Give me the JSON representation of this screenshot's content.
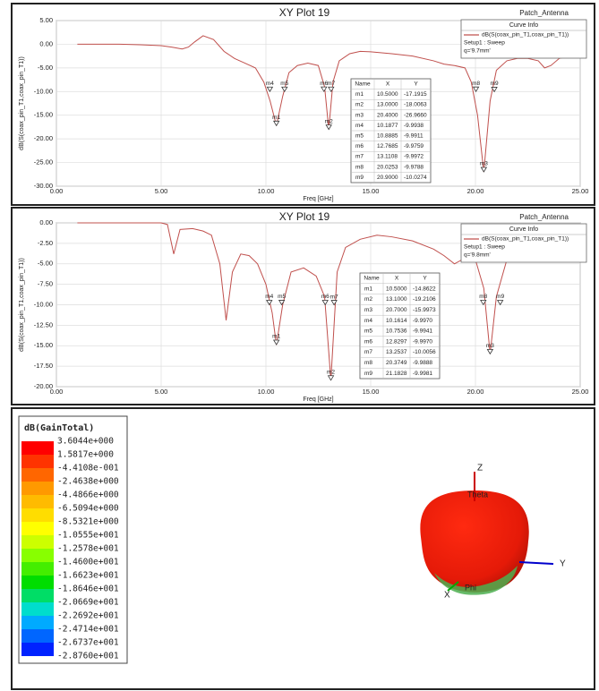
{
  "chart_data": [
    {
      "type": "line",
      "title": "XY Plot 19",
      "corner_label": "Patch_Antenna",
      "x_label": "Freq [GHz]",
      "y_label": "dB(S(coax_pin_T1,coax_pin_T1))",
      "xlim": [
        0,
        25
      ],
      "ylim": [
        -30,
        5
      ],
      "grid": true,
      "xticks": [
        {
          "value": 0,
          "label": "0.00"
        },
        {
          "value": 5,
          "label": "5.00"
        },
        {
          "value": 10,
          "label": "10.00"
        },
        {
          "value": 15,
          "label": "15.00"
        },
        {
          "value": 20,
          "label": "20.00"
        },
        {
          "value": 25,
          "label": "25.00"
        }
      ],
      "yticks": [
        {
          "value": 5,
          "label": "5.00"
        },
        {
          "value": 0,
          "label": "0.00"
        },
        {
          "value": -5,
          "label": "-5.00"
        },
        {
          "value": -10,
          "label": "-10.00"
        },
        {
          "value": -15,
          "label": "-15.00"
        },
        {
          "value": -20,
          "label": "-20.00"
        },
        {
          "value": -25,
          "label": "-25.00"
        },
        {
          "value": -30,
          "label": "-30.00"
        }
      ],
      "x": [
        1,
        2,
        3,
        4,
        5,
        5.5,
        6,
        6.3,
        6.6,
        7,
        7.5,
        8,
        8.5,
        9,
        9.5,
        9.9,
        10.2,
        10.5,
        10.8,
        11.1,
        11.5,
        12,
        12.5,
        12.8,
        13,
        13.2,
        13.5,
        14,
        14.5,
        15,
        16,
        17,
        18,
        18.5,
        19,
        19.5,
        19.8,
        20.1,
        20.4,
        20.7,
        21,
        21.5,
        22,
        22.5,
        23,
        23.3,
        23.6,
        24,
        24.5,
        25
      ],
      "series": [
        {
          "name": "dB(S(coax_pin_T1,coax_pin_T1))",
          "color": "#c0504d",
          "values": [
            0,
            0,
            0,
            -0.1,
            -0.3,
            -0.6,
            -1,
            -0.6,
            0.5,
            1.8,
            1,
            -1.5,
            -3,
            -4,
            -5,
            -8,
            -12,
            -17.2,
            -11,
            -6,
            -4.5,
            -4,
            -4.5,
            -9,
            -18,
            -8,
            -3.5,
            -2,
            -1.5,
            -1.6,
            -2,
            -2.5,
            -3.5,
            -4.2,
            -4.5,
            -5,
            -8,
            -15,
            -27,
            -12,
            -5.5,
            -3.5,
            -3,
            -3,
            -3.5,
            -5,
            -4.5,
            -3,
            -2.5,
            -2.3
          ]
        }
      ],
      "legend_title": "Curve Info",
      "legend_notes": [
        "Setup1 : Sweep",
        "q='9.7mm'"
      ],
      "marker_table_headers": [
        "Name",
        "X",
        "Y"
      ],
      "markers": [
        {
          "name": "m1",
          "x": {
            "value": 10.5,
            "label": "10.5000"
          },
          "y": {
            "value": -17.1915,
            "label": "-17.1915"
          }
        },
        {
          "name": "m2",
          "x": {
            "value": 13,
            "label": "13.0000"
          },
          "y": {
            "value": -18.0063,
            "label": "-18.0063"
          }
        },
        {
          "name": "m3",
          "x": {
            "value": 20.4,
            "label": "20.4000"
          },
          "y": {
            "value": -26.966,
            "label": "-26.9660"
          }
        },
        {
          "name": "m4",
          "x": {
            "value": 10.1877,
            "label": "10.1877"
          },
          "y": {
            "value": -9.9938,
            "label": "-9.9938"
          }
        },
        {
          "name": "m5",
          "x": {
            "value": 10.8885,
            "label": "10.8885"
          },
          "y": {
            "value": -9.9911,
            "label": "-9.9911"
          }
        },
        {
          "name": "m6",
          "x": {
            "value": 12.7685,
            "label": "12.7685"
          },
          "y": {
            "value": -9.9759,
            "label": "-9.9759"
          }
        },
        {
          "name": "m7",
          "x": {
            "value": 13.1108,
            "label": "13.1108"
          },
          "y": {
            "value": -9.9972,
            "label": "-9.9972"
          }
        },
        {
          "name": "m8",
          "x": {
            "value": 20.0253,
            "label": "20.0253"
          },
          "y": {
            "value": -9.9788,
            "label": "-9.9788"
          }
        },
        {
          "name": "m9",
          "x": {
            "value": 20.9,
            "label": "20.9000"
          },
          "y": {
            "value": -10.0274,
            "label": "-10.0274"
          }
        }
      ]
    },
    {
      "type": "line",
      "title": "XY Plot 19",
      "corner_label": "Patch_Antenna",
      "x_label": "Freq [GHz]",
      "y_label": "dB(S(coax_pin_T1,coax_pin_T1))",
      "xlim": [
        0,
        25
      ],
      "ylim": [
        -20,
        0
      ],
      "grid": true,
      "xticks": [
        {
          "value": 0,
          "label": "0.00"
        },
        {
          "value": 5,
          "label": "5.00"
        },
        {
          "value": 10,
          "label": "10.00"
        },
        {
          "value": 15,
          "label": "15.00"
        },
        {
          "value": 20,
          "label": "20.00"
        },
        {
          "value": 25,
          "label": "25.00"
        }
      ],
      "yticks": [
        {
          "value": 0,
          "label": "0.00"
        },
        {
          "value": -2.5,
          "label": "-2.50"
        },
        {
          "value": -5,
          "label": "-5.00"
        },
        {
          "value": -7.5,
          "label": "-7.50"
        },
        {
          "value": -10,
          "label": "-10.00"
        },
        {
          "value": -12.5,
          "label": "-12.50"
        },
        {
          "value": -15,
          "label": "-15.00"
        },
        {
          "value": -17.5,
          "label": "-17.50"
        },
        {
          "value": -20,
          "label": "-20.00"
        }
      ],
      "x": [
        1,
        2,
        3,
        4,
        5,
        5.3,
        5.6,
        5.9,
        6.5,
        7,
        7.4,
        7.8,
        8.1,
        8.4,
        8.8,
        9.2,
        9.6,
        10,
        10.3,
        10.5,
        10.8,
        11.2,
        11.8,
        12.4,
        12.8,
        13.1,
        13.4,
        13.8,
        14.5,
        15.3,
        16,
        17,
        18,
        18.5,
        19,
        19.5,
        20,
        20.4,
        20.7,
        21,
        21.5,
        22,
        23,
        24,
        25
      ],
      "series": [
        {
          "name": "dB(S(coax_pin_T1,coax_pin_T1))",
          "color": "#c0504d",
          "values": [
            0,
            0,
            0,
            0,
            0,
            -0.2,
            -3.8,
            -0.8,
            -0.7,
            -1,
            -1.5,
            -5,
            -11.9,
            -6,
            -3.8,
            -4,
            -5,
            -7.5,
            -11,
            -14.9,
            -10,
            -6,
            -5.5,
            -6.5,
            -9,
            -19.2,
            -6,
            -3,
            -2,
            -1.5,
            -1.7,
            -2.2,
            -3.2,
            -4,
            -5,
            -4.3,
            -4.5,
            -8,
            -16,
            -9,
            -4.5,
            -3,
            -1.5,
            -0.8,
            -0.6
          ]
        }
      ],
      "legend_title": "Curve Info",
      "legend_notes": [
        "Setup1 : Sweep",
        "q='9.8mm'"
      ],
      "marker_table_headers": [
        "Name",
        "X",
        "Y"
      ],
      "markers": [
        {
          "name": "m1",
          "x": {
            "value": 10.5,
            "label": "10.5000"
          },
          "y": {
            "value": -14.8622,
            "label": "-14.8622"
          }
        },
        {
          "name": "m2",
          "x": {
            "value": 13.1,
            "label": "13.1000"
          },
          "y": {
            "value": -19.2106,
            "label": "-19.2106"
          }
        },
        {
          "name": "m3",
          "x": {
            "value": 20.7,
            "label": "20.7000"
          },
          "y": {
            "value": -15.9973,
            "label": "-15.9973"
          }
        },
        {
          "name": "m4",
          "x": {
            "value": 10.1614,
            "label": "10.1614"
          },
          "y": {
            "value": -9.997,
            "label": "-9.9970"
          }
        },
        {
          "name": "m5",
          "x": {
            "value": 10.7536,
            "label": "10.7536"
          },
          "y": {
            "value": -9.9941,
            "label": "-9.9941"
          }
        },
        {
          "name": "m6",
          "x": {
            "value": 12.8297,
            "label": "12.8297"
          },
          "y": {
            "value": -9.997,
            "label": "-9.9970"
          }
        },
        {
          "name": "m7",
          "x": {
            "value": 13.2537,
            "label": "13.2537"
          },
          "y": {
            "value": -10.0056,
            "label": "-10.0056"
          }
        },
        {
          "name": "m8",
          "x": {
            "value": 20.3749,
            "label": "20.3749"
          },
          "y": {
            "value": -9.9888,
            "label": "-9.9888"
          }
        },
        {
          "name": "m9",
          "x": {
            "value": 21.1828,
            "label": "21.1828"
          },
          "y": {
            "value": -9.9981,
            "label": "-9.9981"
          }
        }
      ]
    }
  ],
  "gain_plot": {
    "legend": {
      "title": "dB(GainTotal)",
      "labels": [
        "3.6044e+000",
        "1.5817e+000",
        "-4.4108e-001",
        "-2.4638e+000",
        "-4.4866e+000",
        "-6.5094e+000",
        "-8.5321e+000",
        "-1.0555e+001",
        "-1.2578e+001",
        "-1.4600e+001",
        "-1.6623e+001",
        "-1.8646e+001",
        "-2.0669e+001",
        "-2.2692e+001",
        "-2.4714e+001",
        "-2.6737e+001",
        "-2.8760e+001"
      ],
      "colors": [
        "#ff0000",
        "#ff3300",
        "#ff6600",
        "#ff9900",
        "#ffbb00",
        "#ffdd00",
        "#ffff00",
        "#ccff00",
        "#88ff00",
        "#44ee00",
        "#00dd00",
        "#00dd66",
        "#00ddcc",
        "#00aaff",
        "#0066ff",
        "#0022ff"
      ]
    },
    "axes": {
      "z": "Z",
      "y": "Y",
      "x": "X",
      "theta": "Theta",
      "phi": "Phi"
    }
  }
}
